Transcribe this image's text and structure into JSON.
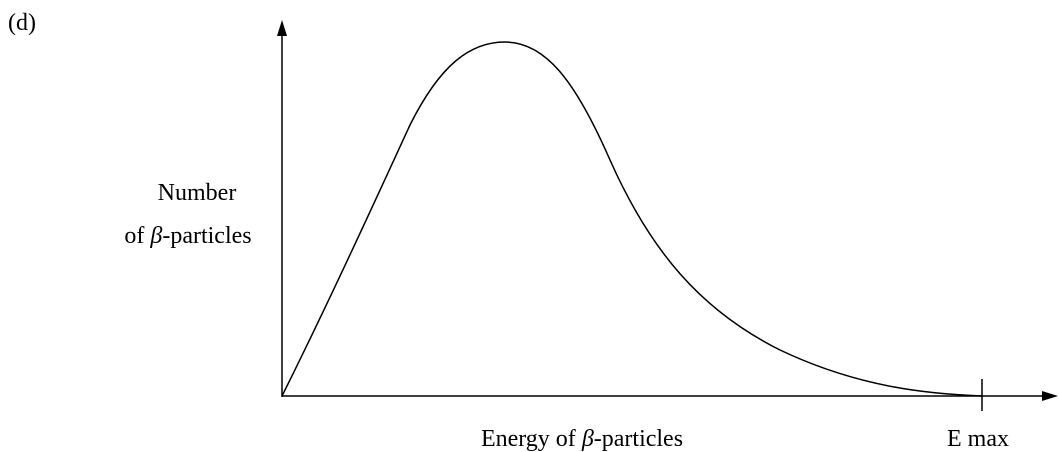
{
  "part_label": "(d)",
  "y_axis_label": {
    "line1": "Number",
    "line2": [
      "of ",
      "β",
      "-particles"
    ]
  },
  "x_axis_label": [
    "Energy of ",
    "β",
    "-particles"
  ],
  "x_marker_label": "E max"
}
